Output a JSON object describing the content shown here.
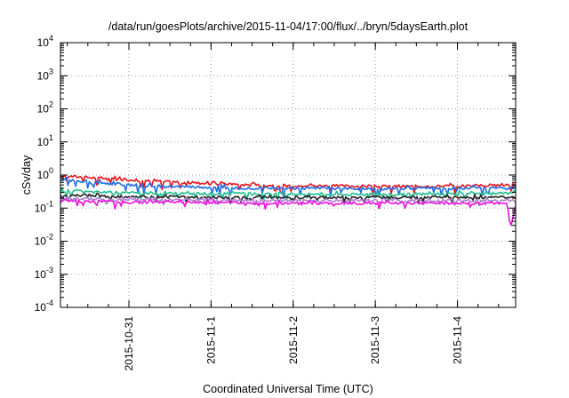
{
  "chart_data": {
    "type": "line",
    "title": "/data/run/goesPlots/archive/2015-11-04/17:00/flux/../bryn/5daysEarth.plot",
    "xlabel": "Coordinated Universal Time (UTC)",
    "ylabel": "cSv/day",
    "yscale": "log",
    "ylim": [
      0.0001,
      10000
    ],
    "xlim": [
      "2015-10-30T04:00",
      "2015-11-04T17:00"
    ],
    "grid": true,
    "legend": "none",
    "x_ticks": [
      "2015-10-31",
      "2015-11-1",
      "2015-11-2",
      "2015-11-3",
      "2015-11-4"
    ],
    "y_ticks": [
      {
        "base": "10",
        "exp": "-4"
      },
      {
        "base": "10",
        "exp": "-3"
      },
      {
        "base": "10",
        "exp": "-2"
      },
      {
        "base": "10",
        "exp": "-1"
      },
      {
        "base": "10",
        "exp": "0"
      },
      {
        "base": "10",
        "exp": "1"
      },
      {
        "base": "10",
        "exp": "2"
      },
      {
        "base": "10",
        "exp": "3"
      },
      {
        "base": "10",
        "exp": "4"
      }
    ],
    "series": [
      {
        "color": "#e8141c",
        "x": [
          "2015-10-30T04:00",
          "2015-10-30T12:00",
          "2015-10-31T00:00",
          "2015-10-31T12:00",
          "2015-11-01T00:00",
          "2015-11-01T12:00",
          "2015-11-02T00:00",
          "2015-11-02T12:00",
          "2015-11-03T00:00",
          "2015-11-03T12:00",
          "2015-11-04T00:00",
          "2015-11-04T17:00"
        ],
        "y": [
          0.95,
          0.85,
          0.72,
          0.62,
          0.55,
          0.5,
          0.48,
          0.47,
          0.46,
          0.46,
          0.47,
          0.5
        ]
      },
      {
        "color": "#1f6fe5",
        "x": [
          "2015-10-30T04:00",
          "2015-10-30T12:00",
          "2015-10-31T00:00",
          "2015-10-31T12:00",
          "2015-11-01T00:00",
          "2015-11-01T12:00",
          "2015-11-02T00:00",
          "2015-11-02T12:00",
          "2015-11-03T00:00",
          "2015-11-03T12:00",
          "2015-11-04T00:00",
          "2015-11-04T17:00"
        ],
        "y": [
          0.72,
          0.62,
          0.5,
          0.45,
          0.42,
          0.4,
          0.4,
          0.39,
          0.39,
          0.39,
          0.4,
          0.42
        ]
      },
      {
        "color": "#1fbf8f",
        "x": [
          "2015-10-30T04:00",
          "2015-10-30T12:00",
          "2015-10-31T00:00",
          "2015-10-31T12:00",
          "2015-11-01T00:00",
          "2015-11-01T12:00",
          "2015-11-02T00:00",
          "2015-11-02T12:00",
          "2015-11-03T00:00",
          "2015-11-03T12:00",
          "2015-11-04T00:00",
          "2015-11-04T17:00"
        ],
        "y": [
          0.34,
          0.31,
          0.29,
          0.28,
          0.27,
          0.27,
          0.27,
          0.26,
          0.26,
          0.26,
          0.27,
          0.28
        ]
      },
      {
        "color": "#222222",
        "x": [
          "2015-10-30T04:00",
          "2015-10-30T12:00",
          "2015-10-31T00:00",
          "2015-10-31T12:00",
          "2015-11-01T00:00",
          "2015-11-01T12:00",
          "2015-11-02T00:00",
          "2015-11-02T12:00",
          "2015-11-03T00:00",
          "2015-11-03T12:00",
          "2015-11-04T00:00",
          "2015-11-04T17:00"
        ],
        "y": [
          0.25,
          0.23,
          0.22,
          0.22,
          0.21,
          0.21,
          0.21,
          0.21,
          0.21,
          0.21,
          0.21,
          0.21
        ]
      },
      {
        "color": "#b080d0",
        "x": [
          "2015-10-30T04:00",
          "2015-10-30T12:00",
          "2015-10-31T00:00",
          "2015-10-31T12:00",
          "2015-11-01T00:00",
          "2015-11-01T12:00",
          "2015-11-02T00:00",
          "2015-11-02T12:00",
          "2015-11-03T00:00",
          "2015-11-03T12:00",
          "2015-11-04T00:00",
          "2015-11-04T17:00"
        ],
        "y": [
          0.2,
          0.19,
          0.18,
          0.18,
          0.18,
          0.17,
          0.17,
          0.17,
          0.17,
          0.17,
          0.17,
          0.17
        ]
      },
      {
        "color": "#ee10dd",
        "x": [
          "2015-10-30T04:00",
          "2015-10-30T12:00",
          "2015-10-31T00:00",
          "2015-10-31T12:00",
          "2015-11-01T00:00",
          "2015-11-01T12:00",
          "2015-11-02T00:00",
          "2015-11-02T12:00",
          "2015-11-03T00:00",
          "2015-11-03T12:00",
          "2015-11-04T00:00",
          "2015-11-04T12:00",
          "2015-11-04T14:30",
          "2015-11-04T15:30",
          "2015-11-04T17:00"
        ],
        "y": [
          0.17,
          0.16,
          0.15,
          0.15,
          0.15,
          0.14,
          0.14,
          0.14,
          0.14,
          0.14,
          0.14,
          0.14,
          0.14,
          0.025,
          0.12
        ]
      }
    ]
  }
}
